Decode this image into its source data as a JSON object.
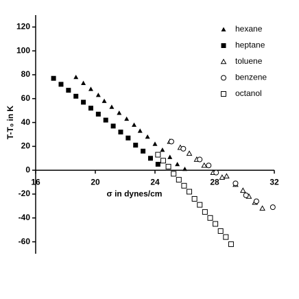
{
  "chart_data": {
    "type": "scatter",
    "xlabel": "σ in dynes/cm",
    "ylabel": "T-T₀ in K",
    "xlim": [
      16,
      32
    ],
    "ylim": [
      -70,
      130
    ],
    "xticks": [
      16,
      20,
      24,
      28,
      32
    ],
    "yticks": [
      -60,
      -40,
      -20,
      0,
      20,
      40,
      60,
      80,
      100,
      120
    ],
    "legend": "upper right",
    "series": [
      {
        "name": "hexane",
        "marker": "triangle-filled",
        "color": "#000",
        "x": [
          18.7,
          19.2,
          19.7,
          20.2,
          20.6,
          21.1,
          21.6,
          22.1,
          22.6,
          23.0,
          23.5,
          24.0,
          24.5,
          25.0,
          25.5,
          26.0
        ],
        "values": [
          78,
          73,
          68,
          63,
          58,
          53,
          48,
          43,
          38,
          33,
          28,
          22,
          17,
          11,
          5,
          1
        ]
      },
      {
        "name": "heptane",
        "marker": "square-filled",
        "color": "#000",
        "x": [
          17.2,
          17.7,
          18.2,
          18.7,
          19.2,
          19.7,
          20.2,
          20.7,
          21.2,
          21.7,
          22.2,
          22.7,
          23.2,
          23.7,
          24.2
        ],
        "values": [
          77,
          72,
          67,
          62,
          57,
          52,
          47,
          42,
          37,
          32,
          27,
          21,
          16,
          10,
          5
        ]
      },
      {
        "name": "toluene",
        "marker": "triangle-open",
        "color": "#000",
        "x": [
          25.0,
          25.7,
          26.3,
          26.8,
          27.3,
          27.9,
          28.5,
          28.8,
          29.4,
          29.9,
          30.3,
          30.7,
          31.2
        ],
        "values": [
          24,
          19,
          14,
          9,
          4,
          -2,
          -6,
          -5,
          -12,
          -17,
          -22,
          -27,
          -32
        ]
      },
      {
        "name": "benzene",
        "marker": "circle-open",
        "color": "#000",
        "x": [
          25.1,
          25.9,
          27.0,
          27.6,
          28.1,
          29.4,
          30.1,
          30.8,
          31.9
        ],
        "values": [
          24,
          18,
          9,
          4,
          -2,
          -11,
          -21,
          -26,
          -31
        ]
      },
      {
        "name": "octanol",
        "marker": "square-open",
        "color": "#000",
        "x": [
          24.2,
          24.55,
          24.9,
          25.25,
          25.6,
          25.95,
          26.3,
          26.65,
          27.0,
          27.35,
          27.7,
          28.05,
          28.4,
          28.75,
          29.1
        ],
        "values": [
          13,
          8,
          3,
          -3,
          -8,
          -13,
          -18,
          -24,
          -29,
          -35,
          -40,
          -45,
          -51,
          -56,
          -62
        ]
      }
    ]
  }
}
